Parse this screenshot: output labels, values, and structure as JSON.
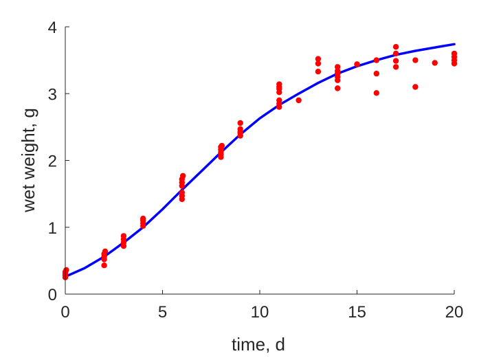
{
  "chart_data": {
    "type": "scatter",
    "title": "",
    "xlabel": "time, d",
    "ylabel": "wet weight, g",
    "xlim": [
      0,
      20
    ],
    "ylim": [
      0,
      4
    ],
    "xticks": [
      0,
      5,
      10,
      15,
      20
    ],
    "yticks": [
      0,
      1,
      2,
      3,
      4
    ],
    "grid": false,
    "colors": {
      "points": "#ff0000",
      "curve": "#0000ff",
      "axes": "#262626"
    },
    "series": [
      {
        "kind": "scatter",
        "points": [
          [
            0,
            0.25
          ],
          [
            0,
            0.28
          ],
          [
            0,
            0.3
          ],
          [
            0,
            0.33
          ],
          [
            0.05,
            0.36
          ],
          [
            2,
            0.43
          ],
          [
            2,
            0.52
          ],
          [
            2,
            0.56
          ],
          [
            2,
            0.6
          ],
          [
            2.05,
            0.64
          ],
          [
            3,
            0.72
          ],
          [
            3,
            0.77
          ],
          [
            3,
            0.82
          ],
          [
            3,
            0.87
          ],
          [
            4,
            1.02
          ],
          [
            4,
            1.06
          ],
          [
            4,
            1.1
          ],
          [
            4,
            1.13
          ],
          [
            6,
            1.42
          ],
          [
            6,
            1.47
          ],
          [
            6,
            1.52
          ],
          [
            6,
            1.62
          ],
          [
            6,
            1.67
          ],
          [
            6,
            1.72
          ],
          [
            6.05,
            1.77
          ],
          [
            8,
            2.05
          ],
          [
            8,
            2.09
          ],
          [
            8,
            2.12
          ],
          [
            8,
            2.16
          ],
          [
            8,
            2.2
          ],
          [
            8.05,
            2.22
          ],
          [
            9,
            2.37
          ],
          [
            9,
            2.41
          ],
          [
            9,
            2.43
          ],
          [
            9,
            2.47
          ],
          [
            9,
            2.56
          ],
          [
            11,
            2.8
          ],
          [
            11,
            2.85
          ],
          [
            11,
            2.9
          ],
          [
            11,
            3.02
          ],
          [
            11,
            3.07
          ],
          [
            11,
            3.1
          ],
          [
            11,
            3.14
          ],
          [
            12,
            2.9
          ],
          [
            13,
            3.33
          ],
          [
            13,
            3.45
          ],
          [
            13,
            3.52
          ],
          [
            14,
            3.08
          ],
          [
            14,
            3.2
          ],
          [
            14,
            3.25
          ],
          [
            14,
            3.3
          ],
          [
            14,
            3.34
          ],
          [
            14,
            3.4
          ],
          [
            15,
            3.44
          ],
          [
            16,
            3.01
          ],
          [
            16,
            3.3
          ],
          [
            16,
            3.5
          ],
          [
            17,
            3.4
          ],
          [
            17,
            3.49
          ],
          [
            17,
            3.6
          ],
          [
            17,
            3.7
          ],
          [
            18,
            3.1
          ],
          [
            18,
            3.5
          ],
          [
            19,
            3.46
          ],
          [
            20,
            3.45
          ],
          [
            20,
            3.5
          ],
          [
            20,
            3.55
          ],
          [
            20,
            3.6
          ]
        ]
      },
      {
        "kind": "line",
        "points": [
          [
            0,
            0.26
          ],
          [
            1,
            0.39
          ],
          [
            2,
            0.56
          ],
          [
            3,
            0.77
          ],
          [
            4,
            1.0
          ],
          [
            5,
            1.27
          ],
          [
            6,
            1.56
          ],
          [
            7,
            1.84
          ],
          [
            8,
            2.12
          ],
          [
            9,
            2.39
          ],
          [
            10,
            2.63
          ],
          [
            11,
            2.83
          ],
          [
            12,
            3.0
          ],
          [
            13,
            3.16
          ],
          [
            14,
            3.3
          ],
          [
            15,
            3.41
          ],
          [
            16,
            3.5
          ],
          [
            17,
            3.58
          ],
          [
            18,
            3.64
          ],
          [
            19,
            3.69
          ],
          [
            20,
            3.74
          ]
        ]
      }
    ]
  }
}
